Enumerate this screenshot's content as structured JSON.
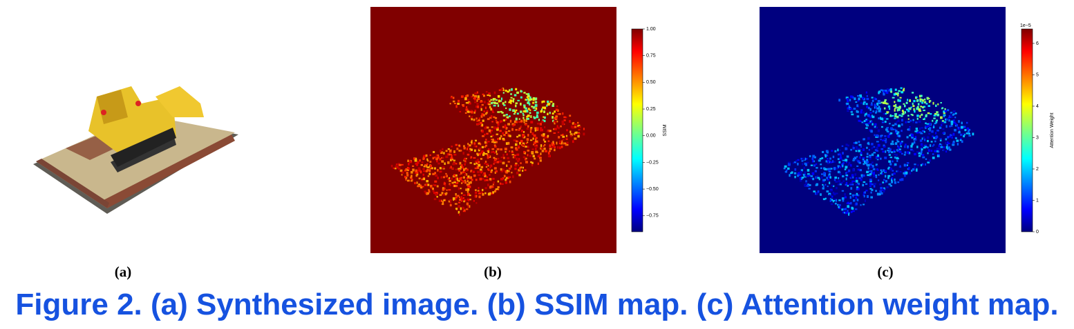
{
  "panels": [
    {
      "label": "(a)"
    },
    {
      "label": "(b)",
      "colorbar": {
        "label": "SSIM",
        "lim": [
          -0.9,
          1.0
        ],
        "ticks": [
          {
            "value": 1,
            "label": "1.00"
          },
          {
            "value": 0.75,
            "label": "0.75"
          },
          {
            "value": 0.5,
            "label": "0.50"
          },
          {
            "value": 0.25,
            "label": "0.25"
          },
          {
            "value": 0,
            "label": "0.00"
          },
          {
            "value": -0.25,
            "label": "−0.25"
          },
          {
            "value": -0.5,
            "label": "−0.50"
          },
          {
            "value": -0.75,
            "label": "−0.75"
          }
        ]
      }
    },
    {
      "label": "(c)",
      "colorbar": {
        "label": "Attention Weight",
        "exponent": "1e−5",
        "lim": [
          0,
          6.46
        ],
        "ticks": [
          0,
          1,
          2,
          3,
          4,
          5,
          6
        ]
      }
    }
  ],
  "caption": "Figure 2. (a) Synthesized image. (b) SSIM map. (c) Attention weight map."
}
